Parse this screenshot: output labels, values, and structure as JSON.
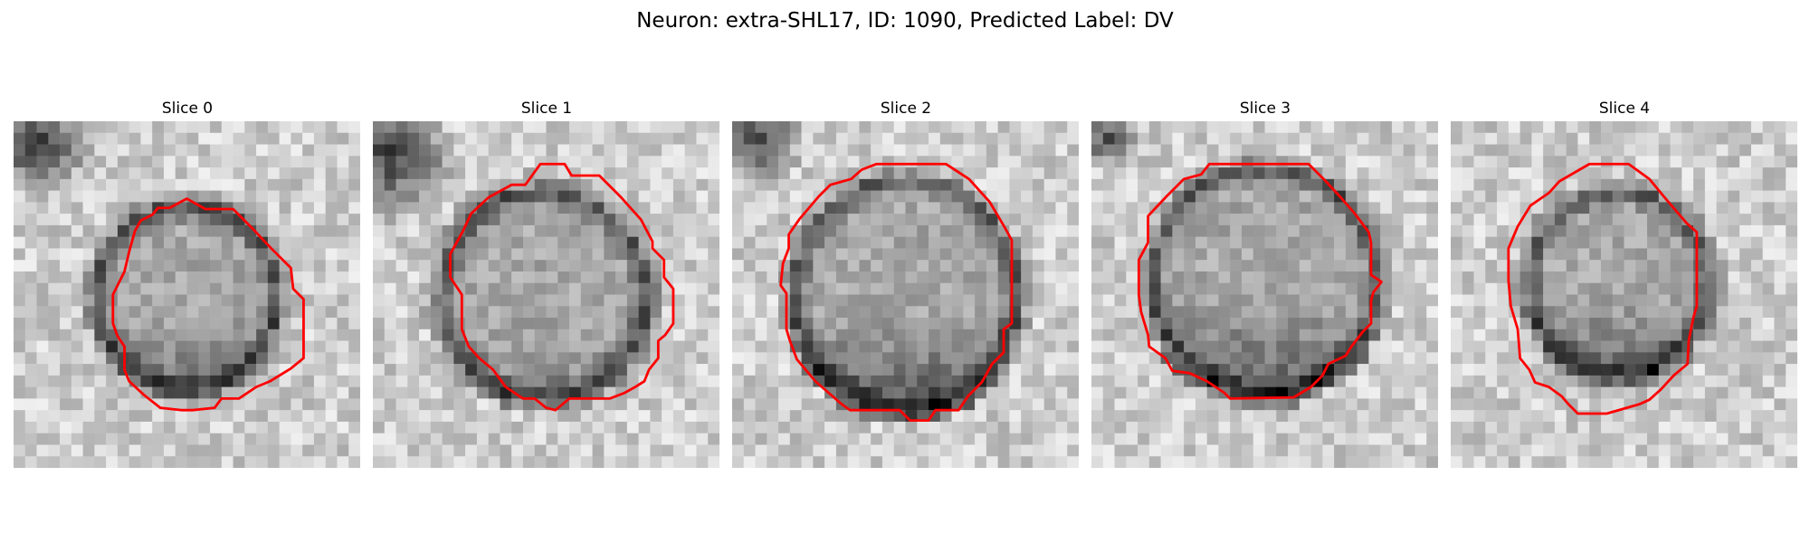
{
  "figure": {
    "title": "Neuron: extra-SHL17, ID: 1090, Predicted Label: DV"
  },
  "panels": [
    {
      "title": "Slice 0"
    },
    {
      "title": "Slice 1"
    },
    {
      "title": "Slice 2"
    },
    {
      "title": "Slice 3"
    },
    {
      "title": "Slice 4"
    }
  ],
  "colors": {
    "contour": "#ff0000",
    "background": "#ffffff"
  }
}
